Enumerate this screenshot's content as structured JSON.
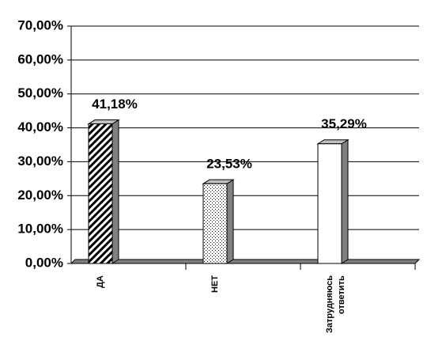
{
  "chart_data": {
    "type": "bar3d",
    "categories": [
      "ДА",
      "НЕТ",
      "Затрудняюсь ответить"
    ],
    "values": [
      41.18,
      23.53,
      35.29
    ],
    "value_labels": [
      "41,18%",
      "23,53%",
      "35,29%"
    ],
    "fills": [
      "hatch",
      "dots",
      "white"
    ],
    "ylim": [
      0,
      70
    ],
    "yticks": [
      {
        "value": 0,
        "label": "0,00%"
      },
      {
        "value": 10,
        "label": "10,00%"
      },
      {
        "value": 20,
        "label": "20,00%"
      },
      {
        "value": 30,
        "label": "30,00%"
      },
      {
        "value": 40,
        "label": "40,00%"
      },
      {
        "value": 50,
        "label": "50,00%"
      },
      {
        "value": 60,
        "label": "60,00%"
      },
      {
        "value": 70,
        "label": "70,00%"
      }
    ],
    "grid": true
  }
}
